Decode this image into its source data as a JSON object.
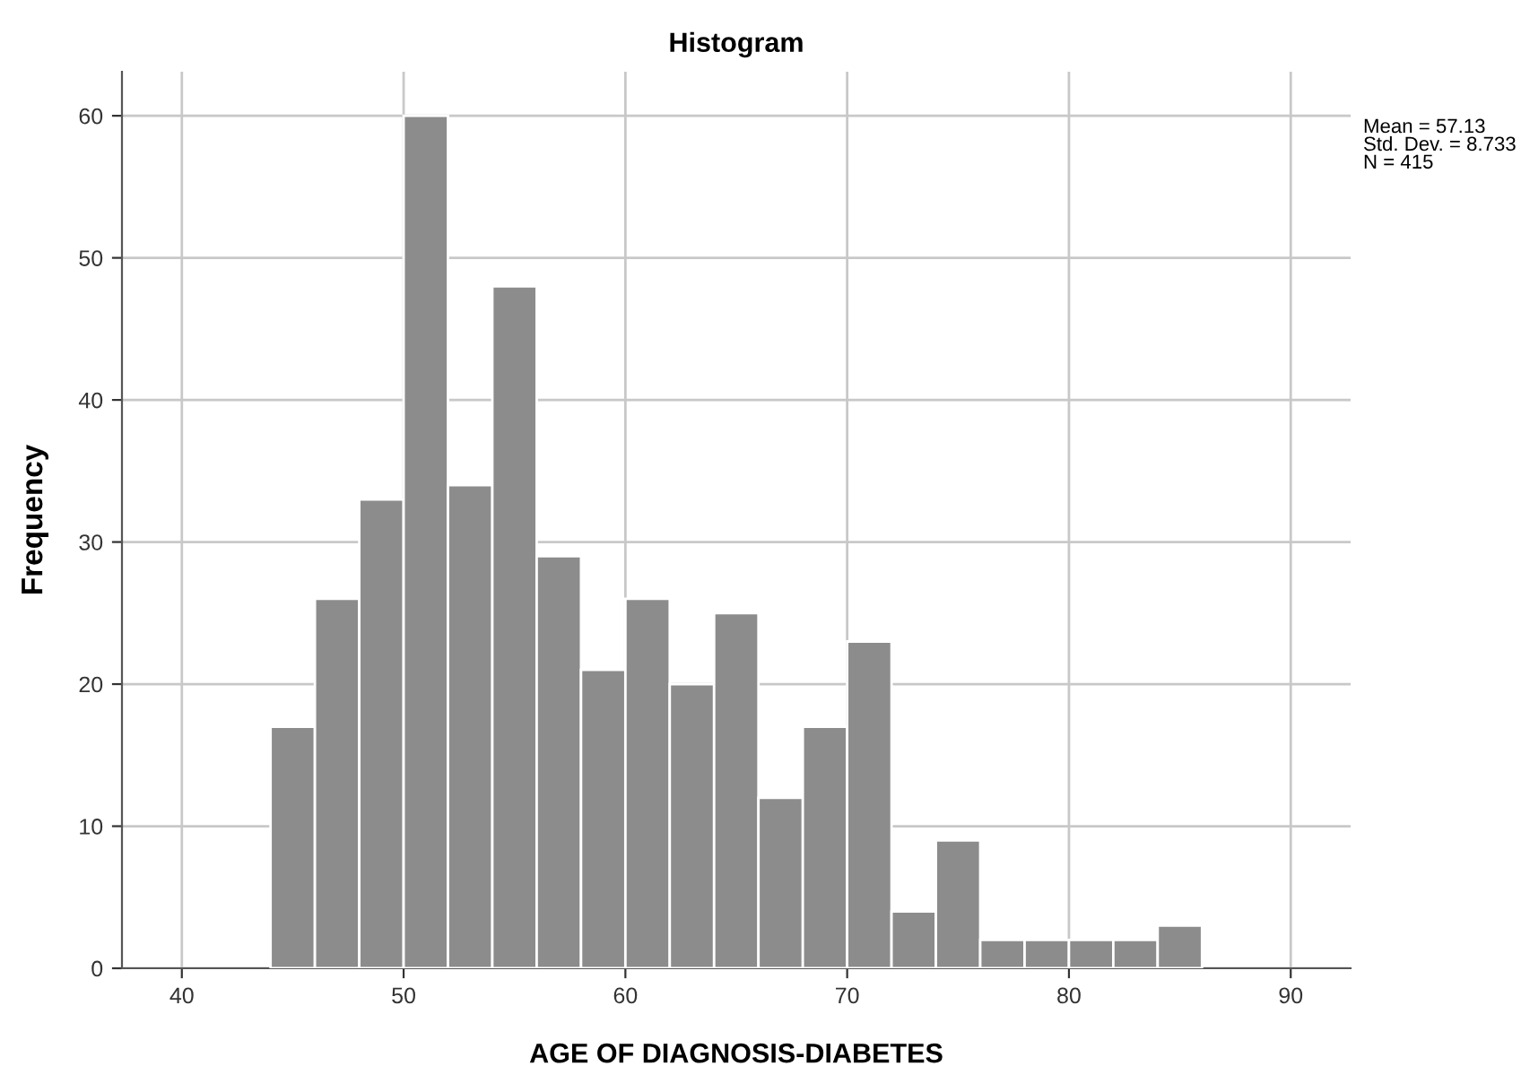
{
  "chart_data": {
    "type": "histogram",
    "title": "Histogram",
    "xlabel": "AGE OF DIAGNOSIS-DIABETES",
    "ylabel": "Frequency",
    "bins": [
      44,
      46,
      48,
      50,
      52,
      54,
      56,
      58,
      60,
      62,
      64,
      66,
      68,
      70,
      72,
      74,
      76,
      78,
      80,
      82,
      84,
      86
    ],
    "values": [
      17,
      26,
      33,
      60,
      34,
      48,
      29,
      21,
      26,
      20,
      25,
      12,
      17,
      23,
      4,
      9,
      2,
      2,
      2,
      2,
      3
    ],
    "color": "#8c8c8c",
    "xlim": [
      37.3,
      92.7
    ],
    "xticks": [
      40,
      50,
      60,
      70,
      80,
      90
    ],
    "ylim": [
      0,
      63.1
    ],
    "yticks": [
      0,
      10,
      20,
      30,
      40,
      50,
      60
    ],
    "grid": true,
    "annotations": [
      "Mean = 57.13\nStd. Dev. = 8.733\nN = 415"
    ]
  }
}
